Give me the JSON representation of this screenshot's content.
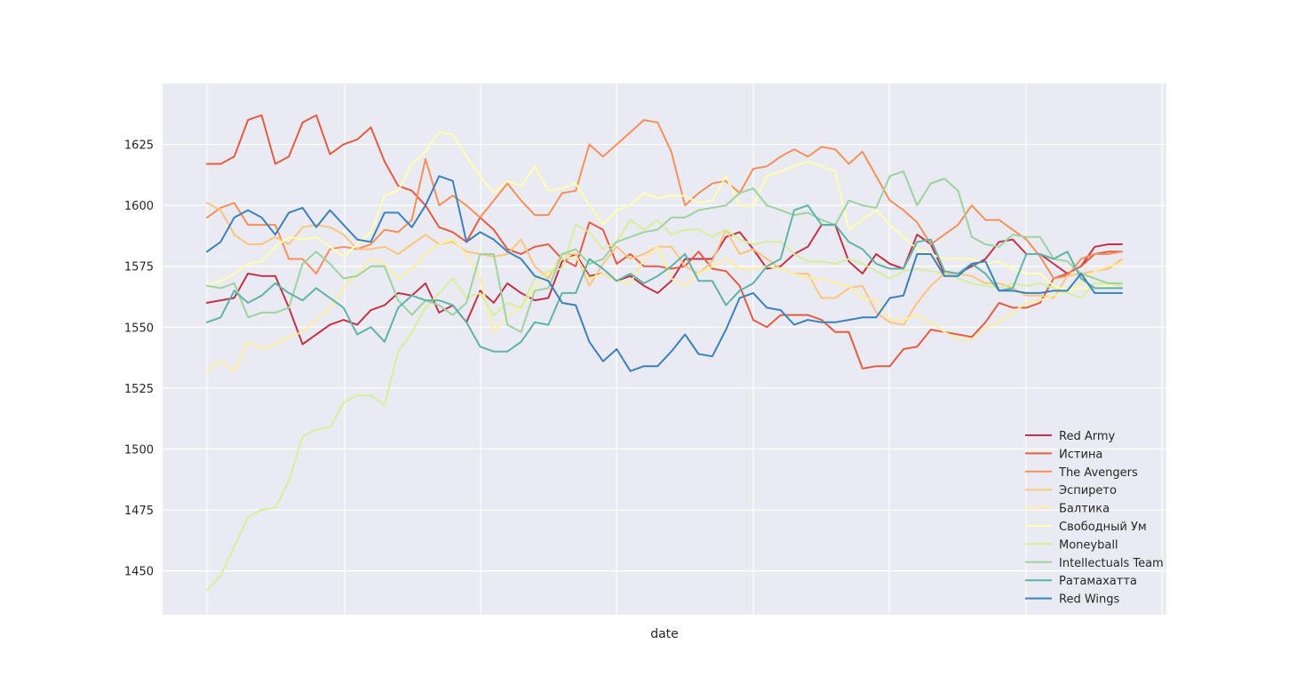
{
  "chart_data": {
    "type": "line",
    "xlabel": "date",
    "ylabel": "",
    "ylim": [
      1432,
      1650
    ],
    "y_ticks": [
      "1450",
      "1475",
      "1500",
      "1525",
      "1550",
      "1575",
      "1600",
      "1625"
    ],
    "grid": true,
    "legend_position": "lower-right",
    "series": [
      {
        "name": "Red Army",
        "color": "#c2334a",
        "values": [
          1560,
          1561,
          1562,
          1572,
          1571,
          1571,
          1558,
          1543,
          1547,
          1551,
          1553,
          1551,
          1557,
          1559,
          1564,
          1563,
          1568,
          1556,
          1559,
          1552,
          1565,
          1560,
          1568,
          1564,
          1561,
          1562,
          1577,
          1580,
          1571,
          1572,
          1569,
          1571,
          1567,
          1564,
          1569,
          1578,
          1578,
          1578,
          1587,
          1589,
          1582,
          1574,
          1575,
          1580,
          1583,
          1592,
          1592,
          1577,
          1572,
          1580,
          1576,
          1574,
          1588,
          1584,
          1572,
          1572,
          1575,
          1578,
          1585,
          1586,
          1580,
          1580,
          1576,
          1572,
          1575,
          1583,
          1584,
          1584
        ]
      },
      {
        "name": "Истина",
        "color": "#e35c44",
        "values": [
          1617,
          1617,
          1620,
          1635,
          1637,
          1617,
          1620,
          1634,
          1637,
          1621,
          1625,
          1627,
          1632,
          1618,
          1608,
          1606,
          1600,
          1591,
          1589,
          1585,
          1595,
          1590,
          1582,
          1580,
          1583,
          1584,
          1578,
          1575,
          1593,
          1590,
          1576,
          1580,
          1575,
          1575,
          1574,
          1575,
          1581,
          1574,
          1573,
          1567,
          1553,
          1550,
          1555,
          1555,
          1555,
          1553,
          1548,
          1548,
          1533,
          1534,
          1534,
          1541,
          1542,
          1549,
          1548,
          1547,
          1546,
          1552,
          1560,
          1558,
          1558,
          1560,
          1570,
          1572,
          1575,
          1580,
          1581,
          1581
        ]
      },
      {
        "name": "The Avengers",
        "color": "#f6905a",
        "values": [
          1595,
          1599,
          1601,
          1592,
          1592,
          1592,
          1578,
          1578,
          1572,
          1582,
          1583,
          1582,
          1584,
          1590,
          1589,
          1594,
          1619,
          1600,
          1604,
          1600,
          1595,
          1602,
          1609,
          1602,
          1596,
          1596,
          1605,
          1606,
          1625,
          1620,
          1625,
          1630,
          1635,
          1634,
          1622,
          1600,
          1605,
          1609,
          1610,
          1605,
          1615,
          1616,
          1620,
          1623,
          1620,
          1624,
          1623,
          1617,
          1622,
          1612,
          1602,
          1598,
          1593,
          1584,
          1588,
          1592,
          1600,
          1594,
          1594,
          1590,
          1586,
          1579,
          1570,
          1571,
          1578,
          1580,
          1580,
          1581
        ]
      },
      {
        "name": "Эспирето",
        "color": "#fbc57f",
        "values": [
          1601,
          1598,
          1588,
          1584,
          1584,
          1587,
          1584,
          1591,
          1592,
          1591,
          1588,
          1582,
          1582,
          1583,
          1580,
          1584,
          1588,
          1584,
          1585,
          1581,
          1580,
          1579,
          1580,
          1586,
          1575,
          1570,
          1580,
          1580,
          1567,
          1576,
          1583,
          1578,
          1580,
          1583,
          1583,
          1575,
          1572,
          1577,
          1590,
          1580,
          1582,
          1578,
          1574,
          1572,
          1572,
          1562,
          1562,
          1566,
          1567,
          1556,
          1552,
          1551,
          1560,
          1567,
          1572,
          1572,
          1571,
          1568,
          1568,
          1566,
          1563,
          1563,
          1562,
          1571,
          1572,
          1573,
          1574,
          1578
        ]
      },
      {
        "name": "Балтика",
        "color": "#fdeea0",
        "values": [
          1532,
          1536,
          1532,
          1544,
          1541,
          1543,
          1546,
          1548,
          1553,
          1558,
          1566,
          1572,
          1578,
          1576,
          1570,
          1574,
          1580,
          1584,
          1586,
          1580,
          1570,
          1548,
          1555,
          1558,
          1566,
          1572,
          1578,
          1579,
          1570,
          1572,
          1569,
          1568,
          1578,
          1583,
          1570,
          1567,
          1572,
          1575,
          1578,
          1574,
          1574,
          1575,
          1574,
          1572,
          1570,
          1570,
          1568,
          1567,
          1562,
          1561,
          1553,
          1553,
          1555,
          1552,
          1548,
          1545,
          1545,
          1550,
          1552,
          1556,
          1560,
          1561,
          1563,
          1565,
          1568,
          1573,
          1575,
          1576
        ]
      },
      {
        "name": "Свободный Ум",
        "color": "#feffb3",
        "values": [
          1567,
          1569,
          1572,
          1576,
          1577,
          1583,
          1587,
          1586,
          1587,
          1583,
          1579,
          1584,
          1589,
          1604,
          1606,
          1617,
          1622,
          1630,
          1629,
          1620,
          1612,
          1605,
          1610,
          1608,
          1616,
          1606,
          1607,
          1609,
          1600,
          1592,
          1598,
          1600,
          1605,
          1603,
          1604,
          1604,
          1601,
          1602,
          1612,
          1600,
          1600,
          1612,
          1614,
          1616,
          1618,
          1616,
          1614,
          1590,
          1594,
          1598,
          1592,
          1587,
          1582,
          1580,
          1578,
          1578,
          1578,
          1576,
          1577,
          1574,
          1572,
          1572,
          1567,
          1565,
          1566,
          1566,
          1567,
          1568
        ]
      },
      {
        "name": "Moneyball",
        "color": "#d7ee9c",
        "values": [
          1442,
          1448,
          1460,
          1472,
          1475,
          1476,
          1487,
          1505,
          1508,
          1509,
          1519,
          1522,
          1522,
          1518,
          1540,
          1548,
          1558,
          1564,
          1570,
          1562,
          1564,
          1555,
          1560,
          1558,
          1570,
          1573,
          1574,
          1592,
          1589,
          1582,
          1585,
          1594,
          1590,
          1594,
          1588,
          1590,
          1590,
          1587,
          1590,
          1586,
          1584,
          1585,
          1585,
          1580,
          1577,
          1577,
          1576,
          1578,
          1576,
          1573,
          1570,
          1573,
          1574,
          1573,
          1572,
          1570,
          1568,
          1567,
          1566,
          1568,
          1567,
          1568,
          1566,
          1564,
          1562,
          1568,
          1568,
          1567
        ]
      },
      {
        "name": "Intellectuals Team",
        "color": "#9ed3a0",
        "values": [
          1567,
          1566,
          1568,
          1554,
          1556,
          1556,
          1558,
          1576,
          1581,
          1576,
          1570,
          1571,
          1575,
          1575,
          1561,
          1555,
          1561,
          1559,
          1555,
          1560,
          1580,
          1580,
          1551,
          1548,
          1565,
          1566,
          1580,
          1582,
          1576,
          1578,
          1585,
          1587,
          1589,
          1590,
          1595,
          1595,
          1598,
          1599,
          1600,
          1605,
          1607,
          1600,
          1598,
          1596,
          1597,
          1594,
          1592,
          1602,
          1600,
          1599,
          1612,
          1614,
          1600,
          1609,
          1611,
          1606,
          1587,
          1584,
          1583,
          1588,
          1587,
          1587,
          1578,
          1577,
          1572,
          1570,
          1568,
          1568
        ]
      },
      {
        "name": "Ратамахатта",
        "color": "#5fb3a8",
        "values": [
          1552,
          1554,
          1565,
          1560,
          1563,
          1568,
          1564,
          1561,
          1566,
          1562,
          1558,
          1547,
          1550,
          1544,
          1558,
          1563,
          1561,
          1561,
          1559,
          1552,
          1542,
          1540,
          1540,
          1544,
          1552,
          1551,
          1564,
          1564,
          1578,
          1574,
          1569,
          1572,
          1568,
          1571,
          1575,
          1580,
          1569,
          1569,
          1559,
          1565,
          1568,
          1575,
          1578,
          1598,
          1600,
          1592,
          1592,
          1585,
          1582,
          1576,
          1574,
          1574,
          1585,
          1586,
          1573,
          1572,
          1576,
          1572,
          1565,
          1566,
          1580,
          1580,
          1578,
          1581,
          1570,
          1566,
          1566,
          1566
        ]
      },
      {
        "name": "Red Wings",
        "color": "#3b82bb",
        "values": [
          1581,
          1585,
          1595,
          1598,
          1595,
          1588,
          1597,
          1599,
          1591,
          1598,
          1592,
          1586,
          1585,
          1597,
          1597,
          1591,
          1600,
          1612,
          1610,
          1585,
          1589,
          1586,
          1581,
          1578,
          1571,
          1569,
          1560,
          1559,
          1544,
          1536,
          1541,
          1532,
          1534,
          1534,
          1540,
          1547,
          1539,
          1538,
          1549,
          1562,
          1564,
          1558,
          1557,
          1551,
          1553,
          1552,
          1552,
          1553,
          1554,
          1554,
          1562,
          1563,
          1580,
          1580,
          1571,
          1571,
          1576,
          1577,
          1565,
          1565,
          1564,
          1564,
          1565,
          1565,
          1572,
          1564,
          1564,
          1564
        ]
      }
    ]
  }
}
